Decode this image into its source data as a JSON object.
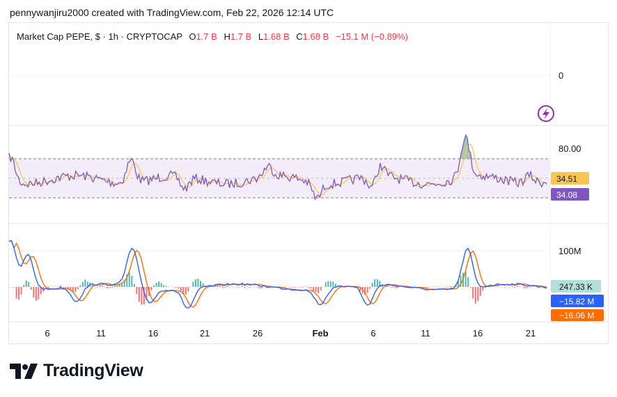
{
  "credit": "pennywanjiru2000 created with TradingView.com, Feb 22, 2026 12:14 UTC",
  "header": {
    "symbol": "Market Cap PEPE, $ · 1h · CRYPTOCAP",
    "o_label": "O",
    "o_value": "1.7 B",
    "h_label": "H",
    "h_value": "1.7 B",
    "l_label": "L",
    "l_value": "1.68 B",
    "c_label": "C",
    "c_value": "1.68 B",
    "change": "−15.1 M (−0.89%)"
  },
  "price_pane": {
    "axis_label": "0",
    "flash_icon": "lightning-icon"
  },
  "rsi_pane": {
    "axis_label": "80.00",
    "badge_ma": "34.51",
    "badge_rsi": "34.08",
    "colors": {
      "rsi": "#7e57c2",
      "ma": "#f9c74f",
      "band": "#ede7f6"
    }
  },
  "macd_pane": {
    "axis_label": "100M",
    "badge_hist": "247.33 K",
    "badge_macd": "−15.82 M",
    "badge_signal": "−16.06 M",
    "colors": {
      "macd": "#2962ff",
      "signal": "#ff6d00",
      "hist_pos": "#26a69a",
      "hist_neg": "#ef5350"
    }
  },
  "time_axis": [
    "6",
    "11",
    "16",
    "21",
    "26",
    "Feb",
    "6",
    "11",
    "16",
    "21"
  ],
  "logo": "TradingView"
}
